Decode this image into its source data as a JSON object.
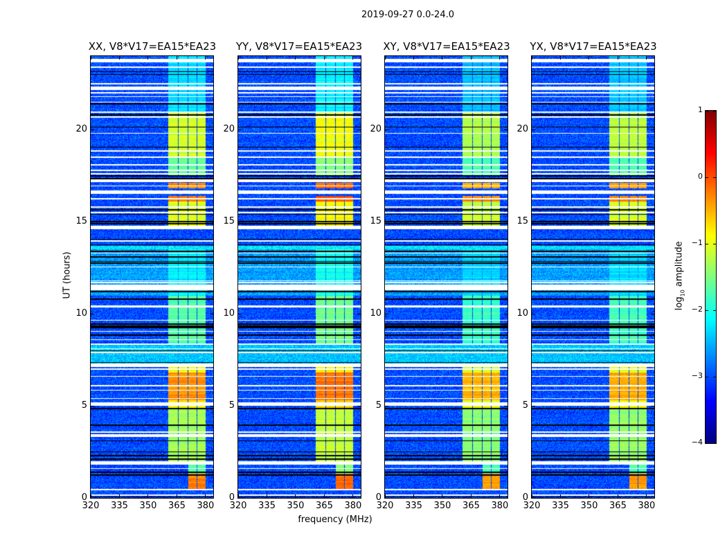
{
  "chart_data": {
    "type": "heatmap",
    "title": "2019-09-27 0.0-24.0",
    "xlabel": "frequency (MHz)",
    "ylabel": "UT (hours)",
    "xlim": [
      320,
      384
    ],
    "ylim": [
      0,
      24
    ],
    "xticks": [
      320,
      335,
      350,
      365,
      380
    ],
    "yticks": [
      0,
      5,
      10,
      15,
      20
    ],
    "grid": false,
    "colorbar": {
      "label_main": "log",
      "label_sub": "10",
      "label_rest": " amplitude",
      "range": [
        -4,
        1
      ],
      "ticks": [
        1,
        0,
        -1,
        -2,
        -3,
        -4
      ],
      "tick_labels": [
        "1",
        "0",
        "−1",
        "−2",
        "−3",
        "−4"
      ],
      "colormap": "jet"
    },
    "panels": [
      {
        "title": "XX, V8*V17=EA15*EA23",
        "gain": 0.0
      },
      {
        "title": "YY, V8*V17=EA15*EA23",
        "gain": 0.15
      },
      {
        "title": "XY, V8*V17=EA15*EA23",
        "gain": -0.15
      },
      {
        "title": "YX, V8*V17=EA15*EA23",
        "gain": -0.1
      }
    ],
    "background_level": -3.0,
    "background_segments": [
      [
        7.2,
        8.3,
        -2.4
      ],
      [
        11.0,
        13.6,
        -2.6
      ],
      [
        13.5,
        13.7,
        -2.2
      ]
    ],
    "channels_mhz": [
      [
        360.6,
        365.6
      ],
      [
        366.0,
        370.5
      ],
      [
        370.9,
        375.3
      ],
      [
        375.8,
        380.0
      ]
    ],
    "activity_segments": [
      {
        "hours": [
          0.45,
          1.3
        ],
        "channels": [
          2,
          3
        ],
        "level": -0.25
      },
      {
        "hours": [
          1.3,
          1.9
        ],
        "channels": [
          2,
          3
        ],
        "level": -1.6
      },
      {
        "hours": [
          1.9,
          4.8
        ],
        "channels": [
          0,
          1,
          2,
          3
        ],
        "level": -1.3
      },
      {
        "hours": [
          4.8,
          5.3
        ],
        "channels": [
          0,
          1,
          2,
          3
        ],
        "level": -0.8
      },
      {
        "hours": [
          5.3,
          6.8
        ],
        "channels": [
          0,
          1,
          2,
          3
        ],
        "level": -0.35
      },
      {
        "hours": [
          6.8,
          7.2
        ],
        "channels": [
          0,
          1,
          2,
          3
        ],
        "level": -0.9
      },
      {
        "hours": [
          8.3,
          11.0
        ],
        "channels": [
          0,
          1,
          2,
          3
        ],
        "level": -1.7
      },
      {
        "hours": [
          11.0,
          13.5
        ],
        "channels": [
          0,
          1,
          2,
          3
        ],
        "level": -2.2
      },
      {
        "hours": [
          14.6,
          16.1
        ],
        "channels": [
          0,
          1,
          2,
          3
        ],
        "level": -1.0
      },
      {
        "hours": [
          16.1,
          16.4
        ],
        "channels": [
          0,
          1,
          2,
          3
        ],
        "level": -0.15
      },
      {
        "hours": [
          16.8,
          17.1
        ],
        "channels": [
          0,
          1,
          2,
          3
        ],
        "level": -0.3
      },
      {
        "hours": [
          17.5,
          18.5
        ],
        "channels": [
          0,
          1,
          2,
          3
        ],
        "level": -1.6
      },
      {
        "hours": [
          18.5,
          20.9
        ],
        "channels": [
          0,
          1,
          2,
          3
        ],
        "level": -1.1
      },
      {
        "hours": [
          20.9,
          24.0
        ],
        "channels": [
          0,
          1,
          2,
          3
        ],
        "level": -2.3
      }
    ],
    "flagged_white": [
      [
        0.1,
        0.2
      ],
      [
        0.42,
        0.48
      ],
      [
        1.57,
        1.63
      ],
      [
        1.8,
        2.0
      ],
      [
        3.3,
        3.45
      ],
      [
        3.54,
        3.6
      ],
      [
        5.0,
        5.2
      ],
      [
        5.37,
        5.43
      ],
      [
        5.82,
        5.88
      ],
      [
        6.07,
        6.13
      ],
      [
        6.57,
        6.63
      ],
      [
        6.97,
        7.03
      ],
      [
        7.1,
        7.3
      ],
      [
        7.87,
        7.93
      ],
      [
        8.07,
        8.13
      ],
      [
        8.32,
        8.38
      ],
      [
        8.57,
        8.63
      ],
      [
        9.02,
        9.08
      ],
      [
        9.62,
        9.68
      ],
      [
        10.33,
        10.47
      ],
      [
        11.3,
        11.6
      ],
      [
        11.67,
        11.73
      ],
      [
        11.77,
        11.83
      ],
      [
        12.52,
        12.58
      ],
      [
        13.27,
        13.33
      ],
      [
        13.92,
        13.98
      ],
      [
        14.6,
        14.8
      ],
      [
        15.47,
        15.53
      ],
      [
        15.77,
        15.83
      ],
      [
        16.22,
        16.28
      ],
      [
        16.5,
        16.7
      ],
      [
        16.92,
        16.98
      ],
      [
        17.15,
        17.35
      ],
      [
        17.57,
        17.63
      ],
      [
        17.77,
        17.83
      ],
      [
        18.07,
        18.13
      ],
      [
        18.47,
        18.53
      ],
      [
        18.82,
        18.88
      ],
      [
        19.77,
        19.83
      ],
      [
        20.67,
        20.73
      ],
      [
        20.92,
        20.98
      ],
      [
        21.47,
        21.53
      ],
      [
        21.77,
        21.83
      ],
      [
        21.97,
        22.03
      ],
      [
        22.15,
        22.35
      ],
      [
        22.47,
        22.53
      ],
      [
        23.37,
        23.43
      ],
      [
        23.65,
        23.85
      ]
    ],
    "flagged_black": [
      [
        0.02,
        0.08
      ],
      [
        1.22,
        1.28
      ],
      [
        1.37,
        1.43
      ],
      [
        2.07,
        2.13
      ],
      [
        2.27,
        2.33
      ],
      [
        2.47,
        2.53
      ],
      [
        3.07,
        3.13
      ],
      [
        3.92,
        3.98
      ],
      [
        4.82,
        4.88
      ],
      [
        7.32,
        7.38
      ],
      [
        7.97,
        8.03
      ],
      [
        8.82,
        8.88
      ],
      [
        9.22,
        9.38
      ],
      [
        9.42,
        9.48
      ],
      [
        10.77,
        10.83
      ],
      [
        11.17,
        11.23
      ],
      [
        12.72,
        12.78
      ],
      [
        12.82,
        12.88
      ],
      [
        13.07,
        13.13
      ],
      [
        13.37,
        13.43
      ],
      [
        13.72,
        13.78
      ],
      [
        14.02,
        14.08
      ],
      [
        14.87,
        14.93
      ],
      [
        14.97,
        15.03
      ],
      [
        15.37,
        15.43
      ],
      [
        15.62,
        15.68
      ],
      [
        17.32,
        17.38
      ],
      [
        17.47,
        17.53
      ],
      [
        19.02,
        19.08
      ],
      [
        20.12,
        20.18
      ],
      [
        20.77,
        20.83
      ],
      [
        21.37,
        21.43
      ],
      [
        22.97,
        23.03
      ],
      [
        23.12,
        23.18
      ]
    ]
  }
}
